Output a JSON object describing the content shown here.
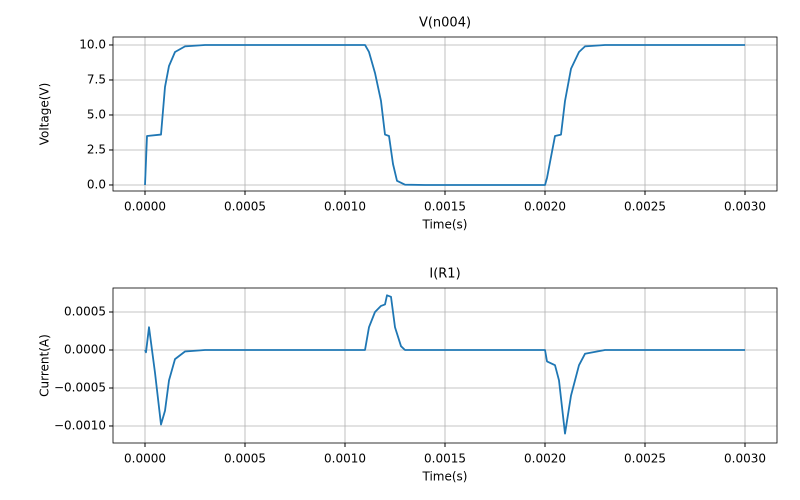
{
  "chart_data": [
    {
      "type": "line",
      "title": "V(n004)",
      "x_label": "Time(s)",
      "y_label": "Voltage(V)",
      "color": "#1f77b4",
      "grid": true,
      "x": [
        0,
        1e-05,
        8e-05,
        0.0001,
        0.00012,
        0.00015,
        0.0002,
        0.0003,
        0.0011,
        0.00112,
        0.00115,
        0.00118,
        0.0012,
        0.00122,
        0.00124,
        0.00126,
        0.0013,
        0.0014,
        0.002,
        0.00201,
        0.00205,
        0.00208,
        0.0021,
        0.00213,
        0.00217,
        0.0022,
        0.0023,
        0.003
      ],
      "values": [
        0,
        3.5,
        3.6,
        7,
        8.5,
        9.5,
        9.9,
        10,
        10,
        9.5,
        8,
        6,
        3.6,
        3.5,
        1.5,
        0.3,
        0.02,
        0,
        0,
        0.5,
        3.5,
        3.6,
        6,
        8.3,
        9.5,
        9.9,
        10,
        10
      ],
      "xlim": [
        -0.00016,
        0.00316
      ],
      "ylim": [
        -0.43,
        10.57
      ],
      "xticks": [
        {
          "value": 0,
          "label": "0.0000"
        },
        {
          "value": 0.0005,
          "label": "0.0005"
        },
        {
          "value": 0.001,
          "label": "0.0010"
        },
        {
          "value": 0.0015,
          "label": "0.0015"
        },
        {
          "value": 0.002,
          "label": "0.0020"
        },
        {
          "value": 0.0025,
          "label": "0.0025"
        },
        {
          "value": 0.003,
          "label": "0.0030"
        }
      ],
      "yticks": [
        {
          "value": 0,
          "label": "0.0"
        },
        {
          "value": 2.5,
          "label": "2.5"
        },
        {
          "value": 5,
          "label": "5.0"
        },
        {
          "value": 7.5,
          "label": "7.5"
        },
        {
          "value": 10,
          "label": "10.0"
        }
      ]
    },
    {
      "type": "line",
      "title": "I(R1)",
      "x_label": "Time(s)",
      "y_label": "Current(A)",
      "color": "#1f77b4",
      "grid": true,
      "x": [
        0,
        5e-06,
        2e-05,
        5e-05,
        8e-05,
        0.0001,
        0.00012,
        0.00015,
        0.0002,
        0.0003,
        0.0011,
        0.00112,
        0.00115,
        0.00118,
        0.0012,
        0.00121,
        0.00123,
        0.00125,
        0.00128,
        0.0013,
        0.002,
        0.00201,
        0.00205,
        0.00207,
        0.0021,
        0.00213,
        0.00217,
        0.0022,
        0.0023,
        0.003
      ],
      "values": [
        0,
        -3e-05,
        0.0003,
        -0.0003,
        -0.00098,
        -0.0008,
        -0.0004,
        -0.00012,
        -2e-05,
        0,
        0,
        0.0003,
        0.0005,
        0.00058,
        0.0006,
        0.00072,
        0.0007,
        0.0003,
        5e-05,
        0,
        0,
        -0.00015,
        -0.0002,
        -0.0004,
        -0.0011,
        -0.0006,
        -0.0002,
        -5e-05,
        0,
        0
      ],
      "xlim": [
        -0.00016,
        0.00316
      ],
      "ylim": [
        -0.001224,
        0.000816
      ],
      "xticks": [
        {
          "value": 0,
          "label": "0.0000"
        },
        {
          "value": 0.0005,
          "label": "0.0005"
        },
        {
          "value": 0.001,
          "label": "0.0010"
        },
        {
          "value": 0.0015,
          "label": "0.0015"
        },
        {
          "value": 0.002,
          "label": "0.0020"
        },
        {
          "value": 0.0025,
          "label": "0.0025"
        },
        {
          "value": 0.003,
          "label": "0.0030"
        }
      ],
      "yticks": [
        {
          "value": -0.001,
          "label": "−0.0010"
        },
        {
          "value": -0.0005,
          "label": "−0.0005"
        },
        {
          "value": 0,
          "label": "0.0000"
        },
        {
          "value": 0.0005,
          "label": "0.0005"
        }
      ]
    }
  ]
}
